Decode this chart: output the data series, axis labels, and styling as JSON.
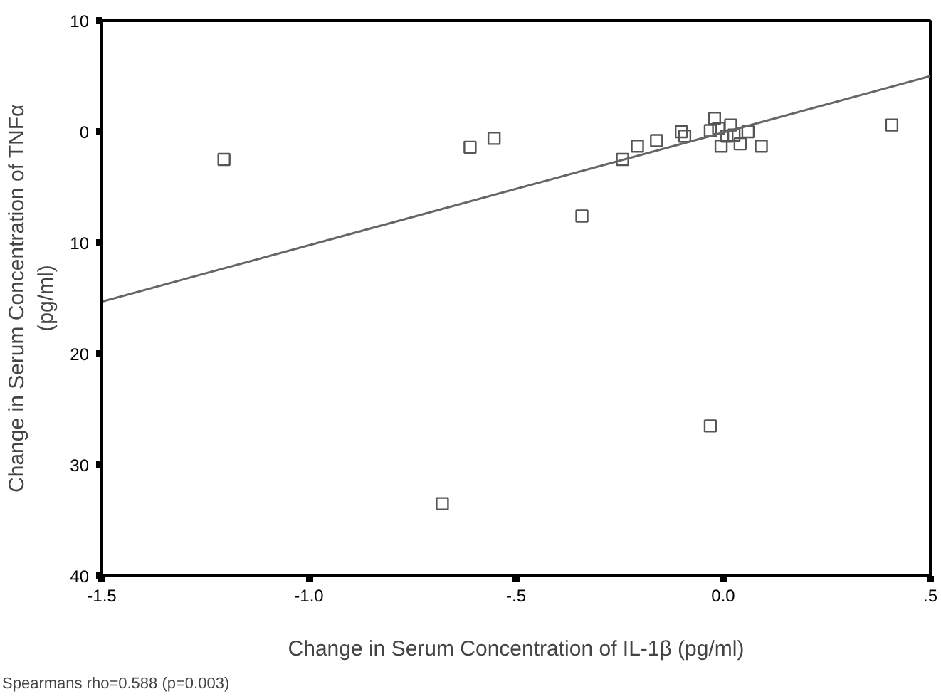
{
  "chart_data": {
    "type": "scatter",
    "xlabel": "Change in Serum Concentration of IL-1β (pg/ml)",
    "ylabel": "Change in Serum Concentration of TNFα\n(pg/ml)",
    "annotations": [
      "Spearmans rho=0.588 (p=0.003)"
    ],
    "xlim": [
      -1.5,
      0.5
    ],
    "ylim": [
      -40,
      10
    ],
    "xticks": [
      -1.5,
      {
        "value": -1.0,
        "label": "-1.0"
      },
      {
        "value": -0.5,
        "label": "-.5"
      },
      {
        "value": 0.0,
        "label": "0.0"
      },
      {
        "value": 0.5,
        "label": ".5"
      }
    ],
    "yticks": [
      10,
      0,
      {
        "value": -10,
        "label": "10"
      },
      {
        "value": -20,
        "label": "20"
      },
      {
        "value": -30,
        "label": "30"
      },
      {
        "value": -40,
        "label": "40"
      }
    ],
    "grid": false,
    "series": [
      {
        "marker": "square",
        "color": "#555555",
        "x": [
          -1.205,
          -0.611,
          -0.553,
          -0.243,
          -0.207,
          -0.161,
          -0.101,
          -0.093,
          -0.031,
          -0.021,
          -0.011,
          -0.005,
          0.009,
          0.018,
          0.026,
          0.041,
          0.06,
          0.092,
          0.407,
          -0.341,
          -0.031,
          -0.678
        ],
        "values": [
          -2.5,
          -1.4,
          -0.6,
          -2.5,
          -1.3,
          -0.8,
          0.0,
          -0.4,
          0.1,
          1.2,
          0.3,
          -1.3,
          -0.4,
          0.6,
          -0.3,
          -1.1,
          0.0,
          -1.3,
          0.6,
          -7.6,
          -26.5,
          -33.5
        ]
      },
      {
        "type": "line",
        "color": "#666666",
        "x": [
          -1.5,
          0.5
        ],
        "values": [
          -15.3,
          5.0
        ]
      }
    ]
  }
}
